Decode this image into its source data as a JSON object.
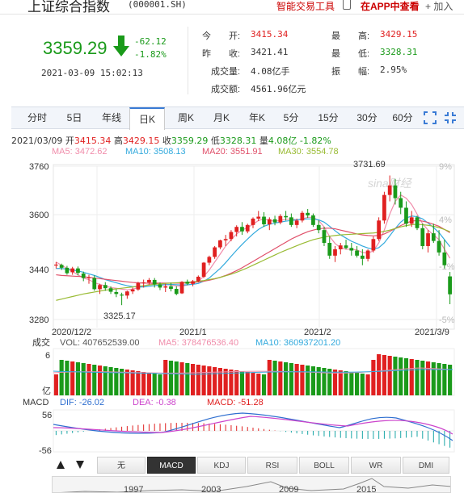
{
  "header": {
    "stock_name": "上证综合指数",
    "stock_code": "(000001.SH)",
    "links": {
      "smart_trade": "智能交易工具",
      "app_view": "在APP中查看",
      "add": "+ 加入"
    }
  },
  "quote": {
    "price": "3359.29",
    "change": "-62.12",
    "change_pct": "-1.82%",
    "datetime": "2021-03-09 15:02:13",
    "labels": {
      "open": "今　　开:",
      "prev_close": "昨　　收:",
      "volume": "成交量:",
      "amount": "成交额:",
      "high": "最　　高:",
      "low": "最　　低:",
      "amplitude": "振　　幅:"
    },
    "values": {
      "open": "3415.34",
      "prev_close": "3421.41",
      "volume": "4.08亿手",
      "amount": "4561.96亿元",
      "high": "3429.15",
      "low": "3328.31",
      "amplitude": "2.95%"
    },
    "colors": {
      "up": "#e02020",
      "down": "#1a9a1a"
    }
  },
  "tabs": [
    "分时",
    "5日",
    "年线",
    "日K",
    "周K",
    "月K",
    "年K",
    "5分",
    "15分",
    "30分",
    "60分"
  ],
  "active_tab": "日K",
  "ohlc_line": {
    "date": "2021/03/09",
    "open_label": "开",
    "open": "3415.34",
    "high_label": "高",
    "high": "3429.15",
    "close_label": "收",
    "close": "3359.29",
    "low_label": "低",
    "low": "3328.31",
    "vol_label": "量",
    "vol": "4.08亿",
    "pct": "-1.82%"
  },
  "ma_legend": {
    "ma5": "MA5: 3472.62",
    "ma10": "MA10: 3508.13",
    "ma20": "MA20: 3551.91",
    "ma30": "MA30: 3554.78",
    "colors": {
      "ma5": "#f08caa",
      "ma10": "#33aadd",
      "ma20": "#e0506a",
      "ma30": "#99bb33"
    }
  },
  "volume_legend": {
    "label": "成交",
    "vol": "VOL: 407652539.00",
    "ma5": "MA5: 378476536.40",
    "ma10": "MA10: 360937201.20",
    "unit": "亿",
    "top": "6"
  },
  "macd_legend": {
    "label": "MACD",
    "dif": "DIF: -26.02",
    "dea": "DEA: -0.38",
    "macd": "MACD: -51.28",
    "top": "56",
    "bottom": "-56"
  },
  "indicator_tabs": [
    "无",
    "MACD",
    "KDJ",
    "RSI",
    "BOLL",
    "WR",
    "DMI"
  ],
  "active_indicator": "MACD",
  "timeline_years": [
    "1997",
    "2003",
    "2009",
    "2015"
  ],
  "chart_data": {
    "type": "candlestick",
    "title": "",
    "xlabel": "",
    "ylabel": "",
    "ylim": [
      3280,
      3760
    ],
    "y_ticks": [
      "3760",
      "3600",
      "3440",
      "3280"
    ],
    "pct_ticks": [
      "9%",
      "4%",
      "-1%",
      "-5%"
    ],
    "x_ticks": [
      "2020/12/2",
      "2021/1",
      "2021/2",
      "2021/3/9"
    ],
    "annotations": [
      {
        "label": "3731.69",
        "value": 3731.69
      },
      {
        "label": "3325.17",
        "value": 3325.17
      }
    ],
    "grid": true,
    "candles": [
      [
        3449,
        3460,
        3440,
        3452
      ],
      [
        3451,
        3455,
        3435,
        3442
      ],
      [
        3442,
        3448,
        3420,
        3425
      ],
      [
        3428,
        3445,
        3420,
        3440
      ],
      [
        3440,
        3446,
        3418,
        3426
      ],
      [
        3424,
        3430,
        3400,
        3410
      ],
      [
        3410,
        3420,
        3392,
        3412
      ],
      [
        3410,
        3418,
        3370,
        3375
      ],
      [
        3375,
        3392,
        3360,
        3388
      ],
      [
        3388,
        3397,
        3370,
        3378
      ],
      [
        3378,
        3384,
        3360,
        3367
      ],
      [
        3366,
        3375,
        3350,
        3360
      ],
      [
        3358,
        3364,
        3325,
        3355
      ],
      [
        3355,
        3370,
        3345,
        3368
      ],
      [
        3368,
        3380,
        3360,
        3374
      ],
      [
        3374,
        3398,
        3370,
        3394
      ],
      [
        3394,
        3405,
        3380,
        3396
      ],
      [
        3396,
        3410,
        3390,
        3404
      ],
      [
        3404,
        3410,
        3380,
        3390
      ],
      [
        3390,
        3396,
        3372,
        3380
      ],
      [
        3380,
        3392,
        3366,
        3384
      ],
      [
        3384,
        3395,
        3368,
        3376
      ],
      [
        3376,
        3384,
        3356,
        3360
      ],
      [
        3362,
        3400,
        3360,
        3398
      ],
      [
        3398,
        3405,
        3388,
        3392
      ],
      [
        3392,
        3404,
        3384,
        3400
      ],
      [
        3400,
        3418,
        3396,
        3414
      ],
      [
        3414,
        3460,
        3410,
        3458
      ],
      [
        3458,
        3480,
        3450,
        3476
      ],
      [
        3476,
        3510,
        3470,
        3506
      ],
      [
        3506,
        3530,
        3500,
        3528
      ],
      [
        3528,
        3545,
        3510,
        3532
      ],
      [
        3532,
        3560,
        3525,
        3554
      ],
      [
        3554,
        3575,
        3540,
        3570
      ],
      [
        3570,
        3585,
        3545,
        3556
      ],
      [
        3556,
        3580,
        3550,
        3576
      ],
      [
        3576,
        3600,
        3566,
        3596
      ],
      [
        3596,
        3620,
        3588,
        3602
      ],
      [
        3602,
        3616,
        3570,
        3578
      ],
      [
        3578,
        3600,
        3560,
        3594
      ],
      [
        3594,
        3605,
        3575,
        3584
      ],
      [
        3584,
        3610,
        3578,
        3604
      ],
      [
        3604,
        3620,
        3590,
        3600
      ],
      [
        3600,
        3612,
        3570,
        3576
      ],
      [
        3576,
        3596,
        3566,
        3590
      ],
      [
        3590,
        3620,
        3584,
        3614
      ],
      [
        3614,
        3626,
        3598,
        3606
      ],
      [
        3606,
        3612,
        3570,
        3576
      ],
      [
        3576,
        3590,
        3550,
        3560
      ],
      [
        3560,
        3570,
        3510,
        3520
      ],
      [
        3520,
        3540,
        3470,
        3480
      ],
      [
        3480,
        3510,
        3460,
        3500
      ],
      [
        3500,
        3520,
        3484,
        3512
      ],
      [
        3512,
        3530,
        3500,
        3504
      ],
      [
        3504,
        3520,
        3480,
        3496
      ],
      [
        3496,
        3510,
        3474,
        3480
      ],
      [
        3480,
        3500,
        3450,
        3470
      ],
      [
        3470,
        3500,
        3462,
        3496
      ],
      [
        3496,
        3540,
        3490,
        3532
      ],
      [
        3532,
        3600,
        3526,
        3590
      ],
      [
        3590,
        3680,
        3580,
        3670
      ],
      [
        3670,
        3731,
        3650,
        3700
      ],
      [
        3700,
        3720,
        3640,
        3660
      ],
      [
        3660,
        3680,
        3610,
        3630
      ],
      [
        3630,
        3650,
        3570,
        3580
      ],
      [
        3580,
        3620,
        3570,
        3600
      ],
      [
        3600,
        3605,
        3560,
        3566
      ],
      [
        3566,
        3580,
        3500,
        3510
      ],
      [
        3510,
        3560,
        3490,
        3550
      ],
      [
        3550,
        3580,
        3520,
        3526
      ],
      [
        3526,
        3560,
        3480,
        3490
      ],
      [
        3490,
        3530,
        3440,
        3450
      ],
      [
        3415,
        3429,
        3328,
        3359
      ]
    ],
    "ma_series": [
      {
        "name": "MA5",
        "values": [
          3460,
          3450,
          3440,
          3430,
          3420,
          3410,
          3405,
          3395,
          3390,
          3385,
          3380,
          3378,
          3375,
          3373,
          3375,
          3380,
          3385,
          3390,
          3392,
          3392,
          3390,
          3388,
          3385,
          3385,
          3388,
          3392,
          3400,
          3415,
          3435,
          3460,
          3485,
          3510,
          3530,
          3548,
          3560,
          3568,
          3578,
          3590,
          3595,
          3590,
          3588,
          3590,
          3594,
          3595,
          3592,
          3595,
          3600,
          3600,
          3590,
          3570,
          3540,
          3518,
          3505,
          3500,
          3500,
          3498,
          3490,
          3488,
          3495,
          3520,
          3560,
          3610,
          3650,
          3670,
          3660,
          3640,
          3610,
          3580,
          3560,
          3545,
          3530,
          3500,
          3472
        ]
      },
      {
        "name": "MA10",
        "values": [
          3440,
          3440,
          3438,
          3435,
          3432,
          3428,
          3423,
          3418,
          3412,
          3405,
          3400,
          3395,
          3390,
          3386,
          3383,
          3382,
          3382,
          3384,
          3386,
          3388,
          3389,
          3390,
          3389,
          3388,
          3389,
          3390,
          3393,
          3400,
          3410,
          3425,
          3440,
          3458,
          3478,
          3497,
          3515,
          3532,
          3548,
          3562,
          3572,
          3578,
          3582,
          3585,
          3588,
          3590,
          3592,
          3594,
          3595,
          3595,
          3592,
          3585,
          3572,
          3558,
          3545,
          3535,
          3525,
          3518,
          3510,
          3504,
          3500,
          3505,
          3520,
          3542,
          3565,
          3585,
          3598,
          3604,
          3602,
          3595,
          3582,
          3568,
          3552,
          3530,
          3508
        ]
      },
      {
        "name": "MA20",
        "values": [
          3420,
          3418,
          3417,
          3416,
          3415,
          3414,
          3412,
          3410,
          3408,
          3406,
          3404,
          3402,
          3400,
          3398,
          3396,
          3395,
          3394,
          3394,
          3394,
          3394,
          3394,
          3394,
          3394,
          3394,
          3395,
          3396,
          3398,
          3400,
          3403,
          3407,
          3412,
          3418,
          3425,
          3433,
          3442,
          3452,
          3462,
          3472,
          3482,
          3492,
          3502,
          3512,
          3522,
          3532,
          3540,
          3548,
          3555,
          3560,
          3564,
          3566,
          3566,
          3564,
          3560,
          3556,
          3552,
          3548,
          3545,
          3543,
          3542,
          3543,
          3548,
          3556,
          3565,
          3574,
          3582,
          3588,
          3590,
          3588,
          3584,
          3578,
          3572,
          3562,
          3552
        ]
      },
      {
        "name": "MA30",
        "values": [
          3340,
          3344,
          3348,
          3352,
          3356,
          3360,
          3363,
          3366,
          3369,
          3372,
          3374,
          3376,
          3378,
          3380,
          3382,
          3384,
          3386,
          3388,
          3390,
          3392,
          3393,
          3394,
          3395,
          3396,
          3397,
          3398,
          3400,
          3402,
          3405,
          3408,
          3412,
          3417,
          3422,
          3428,
          3435,
          3442,
          3450,
          3458,
          3466,
          3474,
          3482,
          3490,
          3497,
          3504,
          3511,
          3518,
          3524,
          3530,
          3534,
          3538,
          3541,
          3543,
          3545,
          3546,
          3547,
          3548,
          3549,
          3550,
          3551,
          3553,
          3556,
          3560,
          3565,
          3570,
          3574,
          3577,
          3578,
          3577,
          3575,
          3572,
          3568,
          3562,
          3555
        ]
      }
    ]
  }
}
